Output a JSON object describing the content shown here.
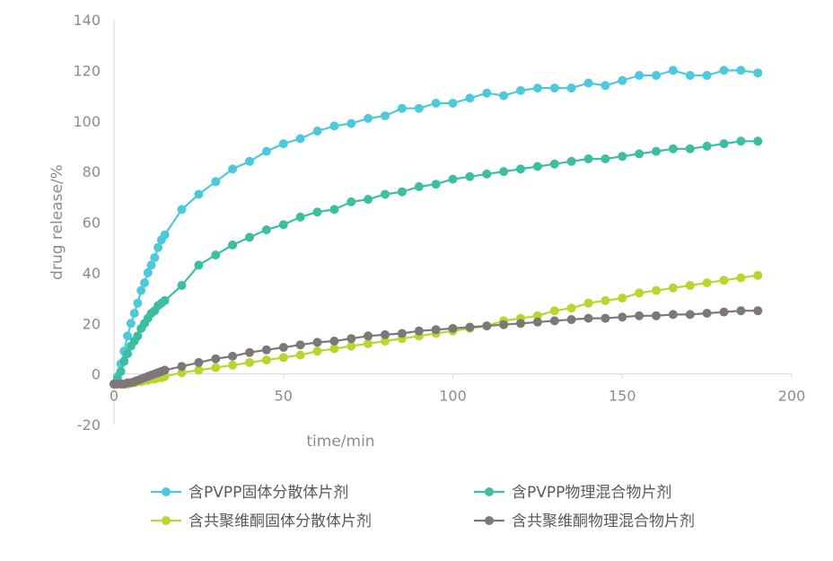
{
  "chart_data": {
    "type": "line",
    "xlabel": "time/min",
    "ylabel": "drug release/%",
    "xlim": [
      0,
      200
    ],
    "ylim": [
      -20,
      140
    ],
    "xticks": [
      0,
      50,
      100,
      150,
      200
    ],
    "yticks": [
      -20,
      0,
      20,
      40,
      60,
      80,
      100,
      120,
      140
    ],
    "grid": false,
    "legend_position": "bottom",
    "series": [
      {
        "name": "含PVPP固体分散体片剂",
        "color": "#4ec9dc",
        "x": [
          0,
          1,
          2,
          3,
          4,
          5,
          6,
          7,
          8,
          9,
          10,
          11,
          12,
          13,
          14,
          15,
          20,
          25,
          30,
          35,
          40,
          45,
          50,
          55,
          60,
          65,
          70,
          75,
          80,
          85,
          90,
          95,
          100,
          105,
          110,
          115,
          120,
          125,
          130,
          135,
          140,
          145,
          150,
          155,
          160,
          165,
          170,
          175,
          180,
          185,
          190
        ],
        "y": [
          -4,
          -1,
          4,
          9,
          15,
          20,
          24,
          28,
          33,
          36,
          40,
          43,
          46,
          50,
          53,
          55,
          65,
          71,
          76,
          81,
          84,
          88,
          91,
          93,
          96,
          98,
          99,
          101,
          102,
          105,
          105,
          107,
          107,
          109,
          111,
          110,
          112,
          113,
          113,
          113,
          115,
          114,
          116,
          118,
          118,
          120,
          118,
          118,
          120,
          120,
          119
        ]
      },
      {
        "name": "含PVPP物理混合物片剂",
        "color": "#3cbfa0",
        "x": [
          0,
          1,
          2,
          3,
          4,
          5,
          6,
          7,
          8,
          9,
          10,
          11,
          12,
          13,
          14,
          15,
          20,
          25,
          30,
          35,
          40,
          45,
          50,
          55,
          60,
          65,
          70,
          75,
          80,
          85,
          90,
          95,
          100,
          105,
          110,
          115,
          120,
          125,
          130,
          135,
          140,
          145,
          150,
          155,
          160,
          165,
          170,
          175,
          180,
          185,
          190
        ],
        "y": [
          -4,
          -2,
          1,
          5,
          8,
          11,
          13,
          15,
          18,
          20,
          22,
          24,
          25,
          27,
          28,
          29,
          35,
          43,
          47,
          51,
          54,
          57,
          59,
          62,
          64,
          65,
          68,
          69,
          71,
          72,
          74,
          75,
          77,
          78,
          79,
          80,
          81,
          82,
          83,
          84,
          85,
          85,
          86,
          87,
          88,
          89,
          89,
          90,
          91,
          92,
          92
        ]
      },
      {
        "name": "含共聚维酮固体分散体片剂",
        "color": "#b8d62e",
        "x": [
          0,
          1,
          2,
          3,
          4,
          5,
          6,
          7,
          8,
          9,
          10,
          11,
          12,
          13,
          14,
          15,
          20,
          25,
          30,
          35,
          40,
          45,
          50,
          55,
          60,
          65,
          70,
          75,
          80,
          85,
          90,
          95,
          100,
          105,
          110,
          115,
          120,
          125,
          130,
          135,
          140,
          145,
          150,
          155,
          160,
          165,
          170,
          175,
          180,
          185,
          190
        ],
        "y": [
          -4,
          -4,
          -4,
          -4,
          -4,
          -3.5,
          -3.5,
          -3,
          -3,
          -2.5,
          -2.5,
          -2,
          -2,
          -1.5,
          -1.5,
          -1,
          0.5,
          1.5,
          2.5,
          3.5,
          4.5,
          5.5,
          6.5,
          7.5,
          9,
          10,
          11,
          12,
          13,
          14,
          15,
          16,
          17,
          18,
          19,
          21,
          22,
          23,
          25,
          26,
          28,
          29,
          30,
          32,
          33,
          34,
          35,
          36,
          37,
          38,
          39
        ]
      },
      {
        "name": "含共聚维酮物理混合物片剂",
        "color": "#7f7777",
        "x": [
          0,
          1,
          2,
          3,
          4,
          5,
          6,
          7,
          8,
          9,
          10,
          11,
          12,
          13,
          14,
          15,
          20,
          25,
          30,
          35,
          40,
          45,
          50,
          55,
          60,
          65,
          70,
          75,
          80,
          85,
          90,
          95,
          100,
          105,
          110,
          115,
          120,
          125,
          130,
          135,
          140,
          145,
          150,
          155,
          160,
          165,
          170,
          175,
          180,
          185,
          190
        ],
        "y": [
          -4,
          -4,
          -4,
          -4,
          -3.5,
          -3.5,
          -3,
          -2.5,
          -2,
          -1.5,
          -1,
          -0.5,
          0,
          0.5,
          1,
          1.5,
          3,
          4.5,
          6,
          7,
          8.5,
          9.5,
          10.5,
          11.5,
          12.5,
          13,
          14,
          15,
          15.5,
          16,
          17,
          17.5,
          18,
          18.5,
          19,
          19.5,
          20,
          20.5,
          21,
          21.5,
          22,
          22,
          22.5,
          23,
          23,
          23.5,
          23.5,
          24,
          24.5,
          25,
          25
        ]
      }
    ]
  }
}
